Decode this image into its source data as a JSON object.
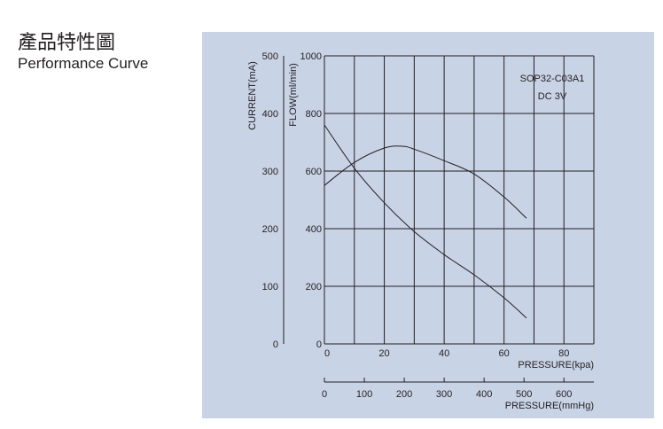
{
  "heading": {
    "title_zh": "產品特性圖",
    "title_en": "Performance Curve"
  },
  "colors": {
    "panel_background": "#c9d3e6",
    "grid_line": "#231f20",
    "curve": "#231f20"
  },
  "chart_data": {
    "type": "line",
    "model_label": "SOP32-C03A1",
    "voltage_label": "DC 3V",
    "grid": true,
    "legend": "none",
    "x_axis_primary": {
      "label": "PRESSURE(kpa)",
      "range": [
        0,
        90
      ],
      "ticks": [
        0,
        20,
        40,
        60,
        80
      ]
    },
    "x_axis_secondary": {
      "label": "PRESSURE(mmHg)",
      "range": [
        0,
        675
      ],
      "ticks": [
        0,
        100,
        200,
        300,
        400,
        500,
        600
      ]
    },
    "y_axis_current": {
      "label": "CURRENT(mA)",
      "range": [
        0,
        500
      ],
      "ticks": [
        0,
        100,
        200,
        300,
        400,
        500
      ]
    },
    "y_axis_flow": {
      "label": "FLOW(ml/min)",
      "range": [
        0,
        1000
      ],
      "ticks": [
        0,
        200,
        400,
        600,
        800,
        1000
      ]
    },
    "series": [
      {
        "axis": "current",
        "unit": "mA",
        "x": [
          0,
          10,
          20,
          26,
          30,
          40,
          50,
          60,
          67.5
        ],
        "y": [
          275,
          315,
          340,
          343,
          338,
          318,
          295,
          255,
          218
        ]
      },
      {
        "axis": "flow",
        "unit": "ml/min",
        "x": [
          0,
          10,
          20,
          30,
          40,
          50,
          60,
          67.5
        ],
        "y": [
          760,
          610,
          490,
          390,
          310,
          240,
          160,
          90
        ]
      }
    ]
  }
}
